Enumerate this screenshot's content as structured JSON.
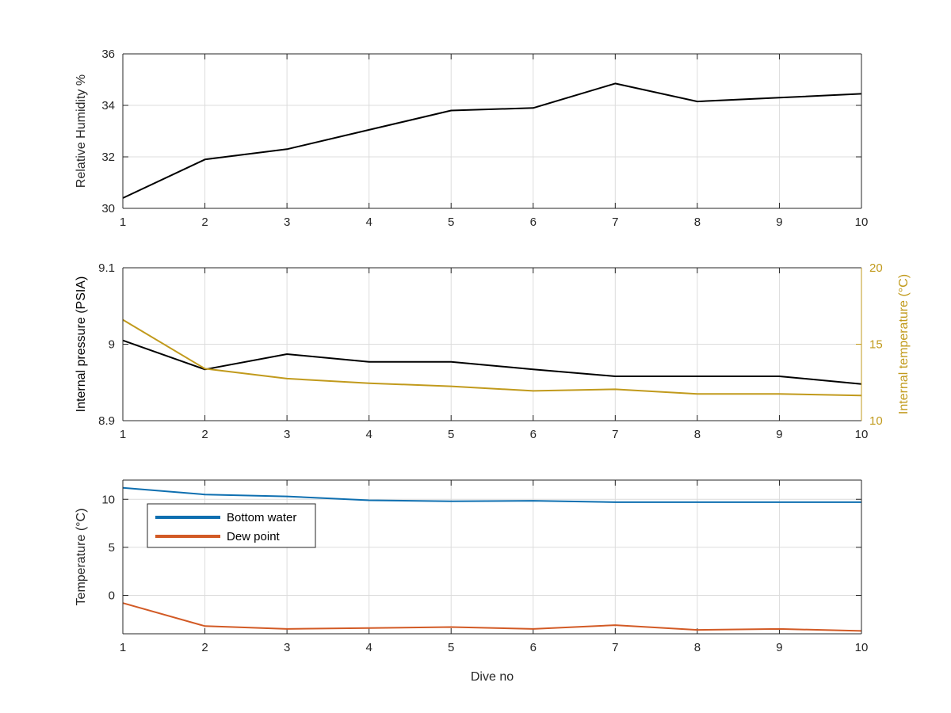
{
  "chart_data": [
    {
      "type": "line",
      "x": [
        1,
        2,
        3,
        4,
        5,
        6,
        7,
        8,
        9,
        10
      ],
      "xlim": [
        1,
        10
      ],
      "xticks": [
        "1",
        "2",
        "3",
        "4",
        "5",
        "6",
        "7",
        "8",
        "9",
        "10"
      ],
      "ylim": [
        30,
        36
      ],
      "yticks": [
        "30",
        "32",
        "34",
        "36"
      ],
      "ylabel": "Relative Humidity %",
      "grid": true,
      "series": [
        {
          "color": "#000000",
          "values": [
            30.4,
            31.9,
            32.3,
            33.05,
            33.8,
            33.9,
            34.85,
            34.15,
            34.3,
            34.45
          ]
        }
      ]
    },
    {
      "type": "line",
      "x": [
        1,
        2,
        3,
        4,
        5,
        6,
        7,
        8,
        9,
        10
      ],
      "xlim": [
        1,
        10
      ],
      "xticks": [
        "1",
        "2",
        "3",
        "4",
        "5",
        "6",
        "7",
        "8",
        "9",
        "10"
      ],
      "ylim": [
        8.9,
        9.1
      ],
      "yticks": [
        "8.9",
        "9",
        "9.1"
      ],
      "ylabel": "Internal pressure (PSIA)",
      "y2lim": [
        10,
        20
      ],
      "y2ticks": [
        "10",
        "15",
        "20"
      ],
      "y2label": "Internal temperature (°C)",
      "grid": true,
      "series": [
        {
          "color": "#000000",
          "axis": "left",
          "values": [
            9.005,
            8.967,
            8.987,
            8.977,
            8.977,
            8.967,
            8.958,
            8.958,
            8.958,
            8.948
          ]
        },
        {
          "color": "#C19A1C",
          "axis": "right",
          "values": [
            16.6,
            13.4,
            12.75,
            12.45,
            12.25,
            11.95,
            12.05,
            11.75,
            11.75,
            11.65
          ]
        }
      ]
    },
    {
      "type": "line",
      "x": [
        1,
        2,
        3,
        4,
        5,
        6,
        7,
        8,
        9,
        10
      ],
      "xlim": [
        1,
        10
      ],
      "xticks": [
        "1",
        "2",
        "3",
        "4",
        "5",
        "6",
        "7",
        "8",
        "9",
        "10"
      ],
      "xlabel": "Dive no",
      "ylim": [
        -4,
        12
      ],
      "yticks": [
        "0",
        "5",
        "10"
      ],
      "ylabel": "Temperature (°C)",
      "grid": true,
      "legend": "top-left",
      "series": [
        {
          "name": "Bottom water",
          "color": "#0E6FB0",
          "values": [
            11.2,
            10.5,
            10.3,
            9.9,
            9.8,
            9.85,
            9.7,
            9.7,
            9.7,
            9.7
          ]
        },
        {
          "name": "Dew point",
          "color": "#D25A25",
          "values": [
            -0.8,
            -3.2,
            -3.5,
            -3.4,
            -3.3,
            -3.5,
            -3.1,
            -3.6,
            -3.5,
            -3.7
          ]
        }
      ]
    }
  ]
}
